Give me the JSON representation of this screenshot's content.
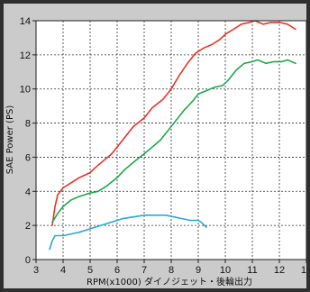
{
  "chart_data": {
    "type": "line",
    "xlabel": "RPM(x1000) ダイノジェット・後輪出力",
    "ylabel": "SAE Power (PS)",
    "xlim": [
      3,
      13
    ],
    "ylim": [
      0,
      14
    ],
    "x_ticks": [
      "3",
      "4",
      "5",
      "6",
      "7",
      "8",
      "9",
      "10",
      "11",
      "12",
      "13"
    ],
    "y_ticks": [
      "0",
      "2",
      "4",
      "6",
      "8",
      "10",
      "12",
      "14"
    ],
    "grid": true,
    "series": [
      {
        "color": "#e8322a",
        "x": [
          3.6,
          3.7,
          3.8,
          4.0,
          4.3,
          4.6,
          5.0,
          5.2,
          5.5,
          5.8,
          6.0,
          6.3,
          6.6,
          7.0,
          7.3,
          7.7,
          8.0,
          8.3,
          8.6,
          8.9,
          9.2,
          9.5,
          9.8,
          10.0,
          10.3,
          10.6,
          10.9,
          11.1,
          11.4,
          11.7,
          12.0,
          12.3,
          12.6
        ],
        "y": [
          2.0,
          3.1,
          3.8,
          4.2,
          4.5,
          4.8,
          5.1,
          5.4,
          5.8,
          6.2,
          6.6,
          7.2,
          7.8,
          8.3,
          8.9,
          9.4,
          10.0,
          10.8,
          11.5,
          12.1,
          12.4,
          12.6,
          12.9,
          13.2,
          13.5,
          13.8,
          13.9,
          14.0,
          13.8,
          13.9,
          13.9,
          13.8,
          13.5
        ]
      },
      {
        "color": "#1ea84a",
        "x": [
          3.6,
          3.8,
          4.0,
          4.3,
          4.6,
          5.0,
          5.3,
          5.6,
          6.0,
          6.3,
          6.6,
          7.0,
          7.3,
          7.6,
          7.9,
          8.2,
          8.5,
          8.8,
          9.0,
          9.3,
          9.6,
          9.9,
          10.1,
          10.4,
          10.7,
          11.0,
          11.2,
          11.5,
          11.8,
          12.1,
          12.3,
          12.6
        ],
        "y": [
          2.2,
          2.7,
          3.1,
          3.5,
          3.7,
          3.9,
          4.0,
          4.3,
          4.8,
          5.3,
          5.7,
          6.2,
          6.6,
          7.0,
          7.6,
          8.2,
          8.8,
          9.3,
          9.7,
          9.9,
          10.1,
          10.2,
          10.5,
          11.1,
          11.5,
          11.6,
          11.7,
          11.5,
          11.6,
          11.6,
          11.7,
          11.5
        ]
      },
      {
        "color": "#2aa8d0",
        "x": [
          3.5,
          3.6,
          3.7,
          4.0,
          4.3,
          4.6,
          5.0,
          5.4,
          5.8,
          6.2,
          6.6,
          7.0,
          7.4,
          7.8,
          8.1,
          8.4,
          8.7,
          9.0,
          9.1,
          9.3
        ],
        "y": [
          0.6,
          1.1,
          1.4,
          1.4,
          1.5,
          1.6,
          1.8,
          2.0,
          2.2,
          2.4,
          2.5,
          2.6,
          2.6,
          2.6,
          2.5,
          2.4,
          2.3,
          2.3,
          2.2,
          1.9
        ]
      }
    ]
  }
}
